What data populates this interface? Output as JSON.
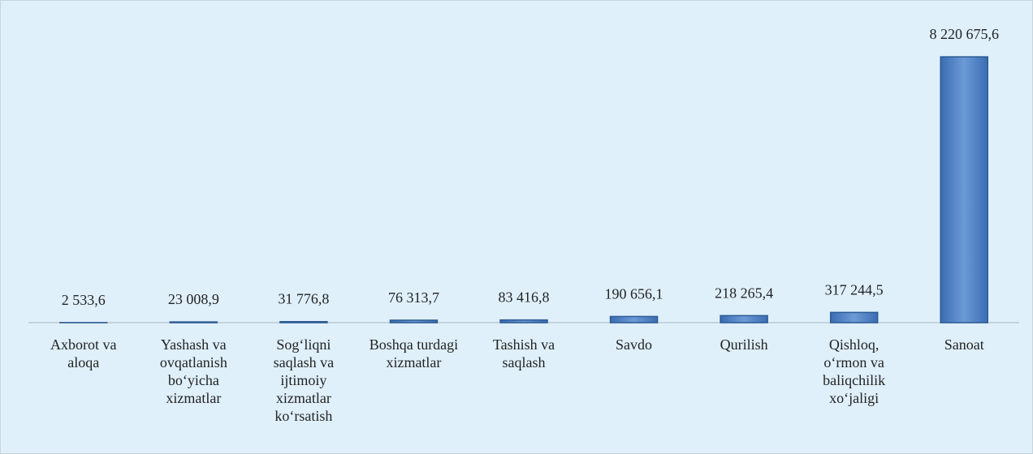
{
  "chart_data": {
    "type": "bar",
    "categories": [
      "Axborot va aloqa",
      "Yashash va ovqatlanish bo‘yicha xizmatlar",
      "Sog‘liqni saqlash va ijtimoiy xizmatlar ko‘rsatish",
      "Boshqa turdagi xizmatlar",
      "Tashish va saqlash",
      "Savdo",
      "Qurilish",
      "Qishloq, o‘rmon va baliqchilik xo‘jaligi",
      "Sanoat"
    ],
    "values": [
      2533.6,
      23008.9,
      31776.8,
      76313.7,
      83416.8,
      190656.1,
      218265.4,
      317244.5,
      8220675.6
    ],
    "value_labels": [
      "2 533,6",
      "23 008,9",
      "31 776,8",
      "76 313,7",
      "83 416,8",
      "190 656,1",
      "218 265,4",
      "317 244,5",
      "8 220 675,6"
    ],
    "color": "#4f81bd",
    "ylim": [
      0,
      9000000
    ]
  }
}
